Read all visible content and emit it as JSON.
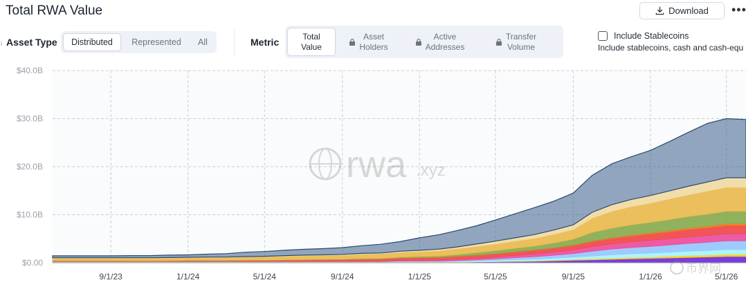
{
  "header": {
    "title": "Total RWA Value",
    "download_label": "Download",
    "more_icon": "more-dots-icon"
  },
  "controls": {
    "asset_type_label": "Asset Type",
    "asset_type_options": [
      "Distributed",
      "Represented",
      "All"
    ],
    "asset_type_selected": "Distributed",
    "metric_label": "Metric",
    "metric_options": [
      {
        "line1": "Total",
        "line2": "Value",
        "locked": false
      },
      {
        "line1": "Asset",
        "line2": "Holders",
        "locked": true
      },
      {
        "line1": "Active",
        "line2": "Addresses",
        "locked": true
      },
      {
        "line1": "Transfer",
        "line2": "Volume",
        "locked": true
      }
    ],
    "metric_selected": "Total Value",
    "stablecoins_label": "Include Stablecoins",
    "stablecoins_checked": false,
    "stablecoins_desc": "Include stablecoins, cash and cash-equ"
  },
  "watermark": {
    "main": "rwa",
    "suffix": ".xyz",
    "corner": "币界网"
  },
  "chart_data": {
    "type": "area",
    "stacked": true,
    "x_ticks": [
      "9/1/23",
      "1/1/24",
      "5/1/24",
      "9/1/24",
      "1/1/25",
      "5/1/25",
      "9/1/25",
      "1/1/26",
      "5/1/26"
    ],
    "y_ticks": [
      "$0.00",
      "$10.0B",
      "$20.0B",
      "$30.0B",
      "$40.0B"
    ],
    "ylim": [
      0,
      40
    ],
    "x": [
      "6/1/23",
      "7/1/23",
      "8/1/23",
      "9/1/23",
      "10/1/23",
      "11/1/23",
      "12/1/23",
      "1/1/24",
      "2/1/24",
      "3/1/24",
      "4/1/24",
      "5/1/24",
      "6/1/24",
      "7/1/24",
      "8/1/24",
      "9/1/24",
      "10/1/24",
      "11/1/24",
      "12/1/24",
      "1/1/25",
      "2/1/25",
      "3/1/25",
      "4/1/25",
      "5/1/25",
      "6/1/25",
      "7/1/25",
      "8/1/25",
      "9/1/25",
      "10/1/25",
      "11/1/25",
      "12/1/25",
      "1/1/26",
      "2/1/26",
      "3/1/26",
      "4/1/26",
      "5/1/26",
      "6/1/26"
    ],
    "series": [
      {
        "color": "#6d28d9",
        "values": [
          0.1,
          0.1,
          0.1,
          0.1,
          0.1,
          0.1,
          0.1,
          0.1,
          0.1,
          0.1,
          0.1,
          0.1,
          0.1,
          0.1,
          0.1,
          0.1,
          0.1,
          0.1,
          0.1,
          0.1,
          0.1,
          0.1,
          0.15,
          0.2,
          0.25,
          0.3,
          0.4,
          0.5,
          0.6,
          0.7,
          0.8,
          0.9,
          1.0,
          1.1,
          1.2,
          1.3,
          1.3
        ]
      },
      {
        "color": "#facc15",
        "values": [
          0.05,
          0.05,
          0.05,
          0.05,
          0.05,
          0.05,
          0.05,
          0.05,
          0.05,
          0.05,
          0.05,
          0.05,
          0.05,
          0.05,
          0.05,
          0.05,
          0.05,
          0.05,
          0.05,
          0.05,
          0.05,
          0.05,
          0.05,
          0.05,
          0.1,
          0.1,
          0.15,
          0.2,
          0.2,
          0.25,
          0.3,
          0.3,
          0.35,
          0.4,
          0.4,
          0.45,
          0.45
        ]
      },
      {
        "color": "#a5f3fc",
        "values": [
          0.05,
          0.05,
          0.05,
          0.05,
          0.05,
          0.05,
          0.05,
          0.05,
          0.05,
          0.05,
          0.05,
          0.05,
          0.05,
          0.05,
          0.05,
          0.05,
          0.05,
          0.05,
          0.1,
          0.1,
          0.1,
          0.15,
          0.2,
          0.25,
          0.3,
          0.35,
          0.4,
          0.5,
          0.6,
          0.7,
          0.75,
          0.8,
          0.85,
          0.9,
          0.95,
          1.0,
          1.0
        ]
      },
      {
        "color": "#93c5fd",
        "values": [
          0.05,
          0.05,
          0.05,
          0.05,
          0.05,
          0.05,
          0.05,
          0.05,
          0.05,
          0.05,
          0.05,
          0.05,
          0.05,
          0.05,
          0.05,
          0.05,
          0.05,
          0.05,
          0.1,
          0.1,
          0.1,
          0.15,
          0.2,
          0.3,
          0.4,
          0.5,
          0.6,
          0.7,
          1.0,
          1.2,
          1.3,
          1.4,
          1.5,
          1.6,
          1.7,
          1.8,
          1.8
        ]
      },
      {
        "color": "#ec4899",
        "values": [
          0.05,
          0.05,
          0.05,
          0.05,
          0.05,
          0.05,
          0.05,
          0.05,
          0.05,
          0.05,
          0.05,
          0.05,
          0.05,
          0.05,
          0.05,
          0.05,
          0.1,
          0.1,
          0.15,
          0.2,
          0.25,
          0.3,
          0.35,
          0.4,
          0.5,
          0.6,
          0.7,
          0.8,
          1.0,
          1.1,
          1.2,
          1.3,
          1.35,
          1.4,
          1.45,
          1.5,
          1.5
        ]
      },
      {
        "color": "#ef4444",
        "values": [
          0.05,
          0.05,
          0.05,
          0.05,
          0.05,
          0.05,
          0.05,
          0.1,
          0.1,
          0.1,
          0.15,
          0.15,
          0.2,
          0.25,
          0.3,
          0.3,
          0.35,
          0.4,
          0.45,
          0.5,
          0.5,
          0.55,
          0.6,
          0.65,
          0.7,
          0.75,
          0.8,
          0.9,
          1.0,
          1.1,
          1.2,
          1.3,
          1.4,
          1.5,
          1.6,
          1.7,
          1.7
        ]
      },
      {
        "color": "#f97316",
        "values": [
          0.05,
          0.05,
          0.05,
          0.05,
          0.05,
          0.05,
          0.05,
          0.05,
          0.05,
          0.05,
          0.05,
          0.05,
          0.05,
          0.05,
          0.05,
          0.05,
          0.05,
          0.05,
          0.05,
          0.05,
          0.05,
          0.05,
          0.05,
          0.05,
          0.05,
          0.05,
          0.05,
          0.1,
          0.1,
          0.15,
          0.2,
          0.2,
          0.25,
          0.3,
          0.3,
          0.35,
          0.35
        ]
      },
      {
        "color": "#86a84a",
        "values": [
          0.05,
          0.05,
          0.05,
          0.05,
          0.05,
          0.05,
          0.05,
          0.05,
          0.05,
          0.05,
          0.05,
          0.05,
          0.05,
          0.05,
          0.05,
          0.1,
          0.1,
          0.1,
          0.15,
          0.2,
          0.25,
          0.35,
          0.5,
          0.6,
          0.7,
          0.8,
          1.0,
          1.2,
          1.8,
          2.0,
          2.1,
          2.2,
          2.3,
          2.4,
          2.5,
          2.6,
          2.6
        ]
      },
      {
        "color": "#e8b84a",
        "values": [
          0.5,
          0.5,
          0.5,
          0.5,
          0.5,
          0.5,
          0.55,
          0.55,
          0.6,
          0.6,
          0.65,
          0.7,
          0.75,
          0.8,
          0.8,
          0.85,
          0.9,
          0.95,
          1.0,
          1.0,
          1.1,
          1.2,
          1.3,
          1.4,
          1.5,
          1.6,
          1.8,
          2.0,
          3.0,
          3.5,
          3.8,
          4.0,
          4.3,
          4.5,
          4.8,
          5.0,
          5.0
        ]
      },
      {
        "color": "#f0d9a0",
        "values": [
          0.1,
          0.1,
          0.1,
          0.1,
          0.1,
          0.1,
          0.1,
          0.1,
          0.1,
          0.1,
          0.1,
          0.1,
          0.15,
          0.15,
          0.15,
          0.15,
          0.2,
          0.2,
          0.25,
          0.3,
          0.35,
          0.4,
          0.5,
          0.6,
          0.7,
          0.8,
          0.9,
          1.0,
          1.2,
          1.4,
          1.5,
          1.6,
          1.7,
          1.8,
          1.9,
          2.0,
          2.0
        ]
      },
      {
        "color": "#3b5f8a",
        "values": [
          0.4,
          0.4,
          0.4,
          0.4,
          0.45,
          0.45,
          0.5,
          0.5,
          0.6,
          0.7,
          0.9,
          1.0,
          1.1,
          1.2,
          1.3,
          1.4,
          1.6,
          1.8,
          2.0,
          2.6,
          3.0,
          3.4,
          3.8,
          4.4,
          5.0,
          5.6,
          6.0,
          6.6,
          7.7,
          8.5,
          8.9,
          9.4,
          10.3,
          11.2,
          12.2,
          12.3,
          12.1
        ]
      }
    ]
  }
}
